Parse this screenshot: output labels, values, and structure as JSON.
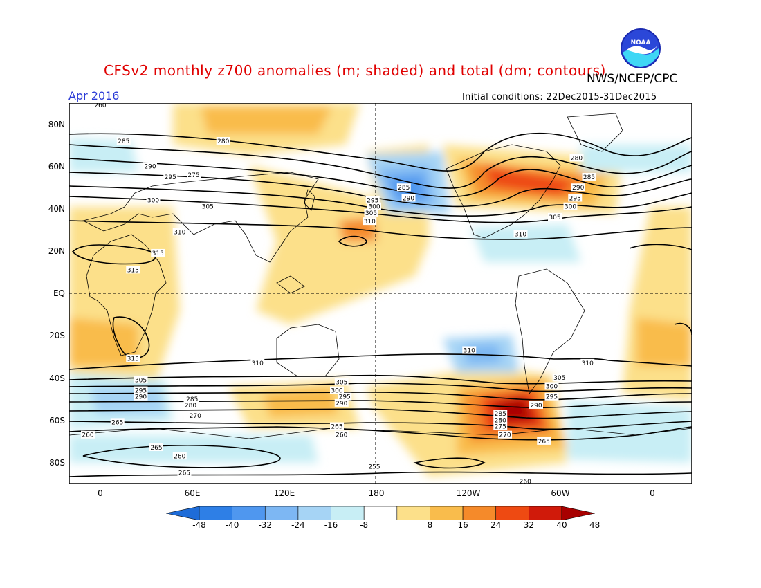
{
  "header": {
    "title": "CFSv2 monthly z700 anomalies (m; shaded) and total (dm; contours)",
    "agency": "NWS/NCEP/CPC",
    "month": "Apr 2016",
    "initial_conditions": "Initial conditions: 22Dec2015-31Dec2015",
    "logo_text": "NOAA"
  },
  "axes": {
    "lat_labels": [
      "80N",
      "60N",
      "40N",
      "20N",
      "EQ",
      "20S",
      "40S",
      "60S",
      "80S"
    ],
    "lon_labels": [
      "0",
      "60E",
      "120E",
      "180",
      "120W",
      "60W",
      "0"
    ]
  },
  "colorbar": {
    "labels": [
      "-48",
      "-40",
      "-32",
      "-24",
      "-16",
      "-8",
      "8",
      "16",
      "24",
      "32",
      "40",
      "48"
    ],
    "colors": [
      "#1e6cd8",
      "#2e7fe6",
      "#4f97ef",
      "#7db7f3",
      "#a6d4f5",
      "#c8eef5",
      "#ffffff",
      "#fce08a",
      "#f9bc4c",
      "#f58a2a",
      "#ee4a12",
      "#d01a0a",
      "#a80000"
    ]
  },
  "contour_labels": [
    {
      "text": "260",
      "lon": 0,
      "lat": 89
    },
    {
      "text": "285",
      "lon": 15,
      "lat": 72
    },
    {
      "text": "280",
      "lon": 79,
      "lat": 72
    },
    {
      "text": "290",
      "lon": 32,
      "lat": 60
    },
    {
      "text": "295",
      "lon": 45,
      "lat": 55
    },
    {
      "text": "300",
      "lon": 34,
      "lat": 44
    },
    {
      "text": "305",
      "lon": 69,
      "lat": 41
    },
    {
      "text": "310",
      "lon": 51,
      "lat": 29
    },
    {
      "text": "315",
      "lon": 21,
      "lat": 11
    },
    {
      "text": "285",
      "lon": -165,
      "lat": 50
    },
    {
      "text": "290",
      "lon": -162,
      "lat": 45
    },
    {
      "text": "295",
      "lon": 175,
      "lat": 44
    },
    {
      "text": "300",
      "lon": 176,
      "lat": 41
    },
    {
      "text": "305",
      "lon": 174,
      "lat": 38
    },
    {
      "text": "310",
      "lon": 173,
      "lat": 34
    },
    {
      "text": "280",
      "lon": -54,
      "lat": 64
    },
    {
      "text": "285",
      "lon": -46,
      "lat": 55
    },
    {
      "text": "290",
      "lon": -53,
      "lat": 50
    },
    {
      "text": "295",
      "lon": -55,
      "lat": 45
    },
    {
      "text": "300",
      "lon": -58,
      "lat": 41
    },
    {
      "text": "305",
      "lon": -68,
      "lat": 36
    },
    {
      "text": "310",
      "lon": -90,
      "lat": 28
    },
    {
      "text": "315",
      "lon": 37,
      "lat": 19
    },
    {
      "text": "315",
      "lon": 21,
      "lat": -31
    },
    {
      "text": "310",
      "lon": 101,
      "lat": -33
    },
    {
      "text": "310",
      "lon": -123,
      "lat": -27
    },
    {
      "text": "310",
      "lon": -47,
      "lat": -33
    },
    {
      "text": "305",
      "lon": 26,
      "lat": -41
    },
    {
      "text": "295",
      "lon": 26,
      "lat": -46
    },
    {
      "text": "290",
      "lon": 26,
      "lat": -49
    },
    {
      "text": "305",
      "lon": 155,
      "lat": -42
    },
    {
      "text": "300",
      "lon": 152,
      "lat": -46
    },
    {
      "text": "295",
      "lon": 157,
      "lat": -49
    },
    {
      "text": "290",
      "lon": 155,
      "lat": -52
    },
    {
      "text": "285",
      "lon": 59,
      "lat": -50
    },
    {
      "text": "280",
      "lon": 58,
      "lat": -53
    },
    {
      "text": "275",
      "lon": 60,
      "lat": 56
    },
    {
      "text": "270",
      "lon": 61,
      "lat": -58
    },
    {
      "text": "265",
      "lon": 11,
      "lat": -61
    },
    {
      "text": "265",
      "lon": 152,
      "lat": -63
    },
    {
      "text": "260",
      "lon": 155,
      "lat": -67
    },
    {
      "text": "265",
      "lon": 36,
      "lat": -73
    },
    {
      "text": "260",
      "lon": 51,
      "lat": -77
    },
    {
      "text": "265",
      "lon": 54,
      "lat": -85
    },
    {
      "text": "255",
      "lon": 176,
      "lat": -82
    },
    {
      "text": "260",
      "lon": -87,
      "lat": -89
    },
    {
      "text": "260",
      "lon": -8,
      "lat": -67
    },
    {
      "text": "300",
      "lon": -70,
      "lat": -44
    },
    {
      "text": "305",
      "lon": -65,
      "lat": -40
    },
    {
      "text": "295",
      "lon": -70,
      "lat": -49
    },
    {
      "text": "290",
      "lon": -80,
      "lat": -53
    },
    {
      "text": "285",
      "lon": -103,
      "lat": -57
    },
    {
      "text": "280",
      "lon": -103,
      "lat": -60
    },
    {
      "text": "275",
      "lon": -103,
      "lat": -63
    },
    {
      "text": "270",
      "lon": -100,
      "lat": -67
    },
    {
      "text": "265",
      "lon": -75,
      "lat": -70
    }
  ]
}
